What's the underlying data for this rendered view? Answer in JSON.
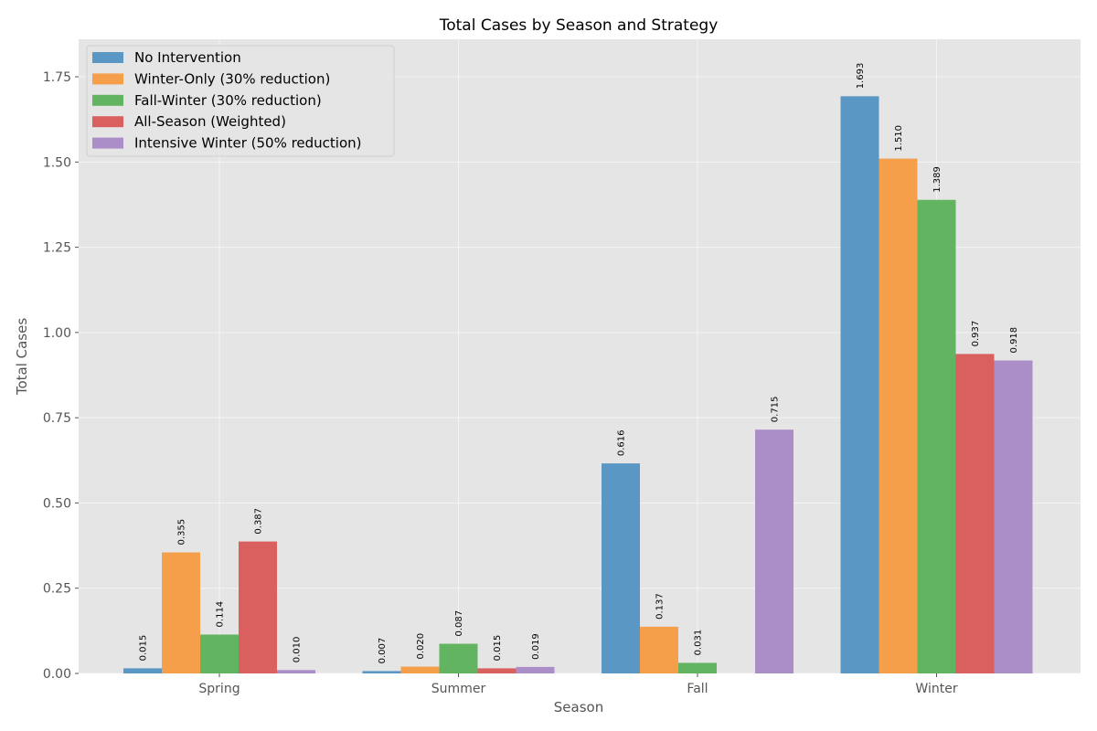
{
  "chart_data": {
    "type": "bar",
    "title": "Total Cases by Season and Strategy",
    "xlabel": "Season",
    "ylabel": "Total Cases",
    "categories": [
      "Spring",
      "Summer",
      "Fall",
      "Winter"
    ],
    "ylim": [
      0,
      1.86
    ],
    "yticks": [
      "0.00",
      "0.25",
      "0.50",
      "0.75",
      "1.00",
      "1.25",
      "1.50",
      "1.75"
    ],
    "grid": true,
    "legend_position": "top-left",
    "series": [
      {
        "name": "No Intervention",
        "color": "#5a97c4",
        "values": [
          0.015,
          0.007,
          0.616,
          1.693
        ],
        "labels": [
          "0.015",
          "0.007",
          "0.616",
          "1.693"
        ]
      },
      {
        "name": "Winter-Only (30% reduction)",
        "color": "#f69f4b",
        "values": [
          0.355,
          0.02,
          0.137,
          1.51
        ],
        "labels": [
          "0.355",
          "0.020",
          "0.137",
          "1.510"
        ]
      },
      {
        "name": "Fall-Winter (30% reduction)",
        "color": "#63b460",
        "values": [
          0.114,
          0.087,
          0.031,
          1.389
        ],
        "labels": [
          "0.114",
          "0.087",
          "0.031",
          "1.389"
        ]
      },
      {
        "name": "All-Season (Weighted)",
        "color": "#da6060",
        "values": [
          0.387,
          0.015,
          null,
          0.937
        ],
        "labels": [
          "0.387",
          "0.015",
          null,
          "0.937"
        ]
      },
      {
        "name": "Intensive Winter (50% reduction)",
        "color": "#ab8ec8",
        "values": [
          0.01,
          0.019,
          0.715,
          0.918
        ],
        "labels": [
          "0.010",
          "0.019",
          "0.715",
          "0.918"
        ]
      }
    ]
  }
}
